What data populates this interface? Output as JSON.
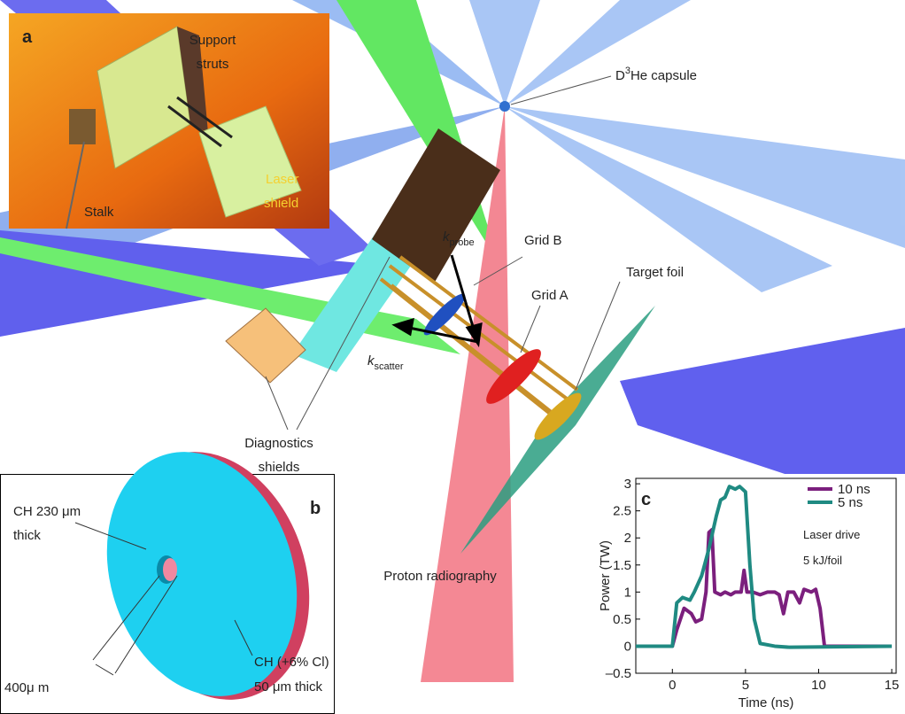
{
  "panel_a": {
    "label": "a",
    "support_struts": [
      "Support",
      "struts"
    ],
    "stalk": "Stalk",
    "laser_shield": [
      "Laser",
      "shield"
    ]
  },
  "main": {
    "capsule": {
      "base": "D",
      "sup": "3",
      "rest": "He capsule"
    },
    "k_probe": {
      "base": "k",
      "sub": "probe"
    },
    "grid_b": "Grid B",
    "target_foil": "Target foil",
    "grid_a": "Grid A",
    "k_scatter": {
      "base": "k",
      "sub": "scatter"
    },
    "diagnostics_shields": [
      "Diagnostics",
      "shields"
    ],
    "proton_radiography": "Proton radiography"
  },
  "panel_b": {
    "label": "b",
    "ch_layer": [
      "CH 230 μm",
      "thick"
    ],
    "hole": "400μ m",
    "cl_layer": [
      "CH (+6% Cl)",
      "50 μm thick"
    ]
  },
  "chart_data": {
    "type": "line",
    "panel_label": "c",
    "x_label": "Time (ns)",
    "y_label": "Power (TW)",
    "xlim": [
      -2.5,
      15.3
    ],
    "ylim": [
      -0.5,
      3.1
    ],
    "xticks": [
      0,
      5,
      10,
      15
    ],
    "yticks": [
      {
        "value": -0.5,
        "label": "–0.5"
      },
      0,
      0.5,
      1,
      1.5,
      2,
      2.5,
      3
    ],
    "legend": "upper right",
    "annotations": [
      "Laser drive",
      "5 kJ/foil"
    ],
    "series": [
      {
        "name": "10 ns",
        "color": "#7b1f7d",
        "x": [
          -2.5,
          0,
          0.3,
          0.8,
          1.3,
          1.6,
          2.0,
          2.3,
          2.5,
          2.7,
          2.9,
          3.3,
          3.6,
          4.0,
          4.3,
          4.7,
          4.9,
          5.1,
          5.5,
          6.0,
          6.5,
          7.0,
          7.3,
          7.6,
          7.9,
          8.3,
          8.7,
          9.0,
          9.5,
          9.8,
          10.1,
          10.4,
          15
        ],
        "values": [
          0,
          0,
          0.3,
          0.7,
          0.6,
          0.45,
          0.5,
          1.0,
          2.1,
          2.15,
          1.0,
          0.95,
          1.0,
          0.95,
          1.0,
          1.0,
          1.4,
          1.0,
          1.0,
          0.95,
          1.0,
          1.0,
          0.95,
          0.6,
          1.0,
          1.0,
          0.8,
          1.05,
          1.0,
          1.05,
          0.7,
          0,
          0
        ]
      },
      {
        "name": "5 ns",
        "color": "#1f8a82",
        "x": [
          -2.5,
          0,
          0.3,
          0.7,
          1.2,
          1.5,
          2.0,
          2.5,
          3.0,
          3.3,
          3.6,
          3.9,
          4.3,
          4.6,
          5.0,
          5.3,
          5.6,
          6.0,
          7.0,
          8.0,
          15
        ],
        "values": [
          0,
          0,
          0.8,
          0.9,
          0.85,
          1.0,
          1.3,
          1.8,
          2.4,
          2.7,
          2.75,
          2.95,
          2.9,
          2.95,
          2.85,
          1.5,
          0.5,
          0.05,
          0,
          -0.02,
          0
        ]
      }
    ]
  }
}
